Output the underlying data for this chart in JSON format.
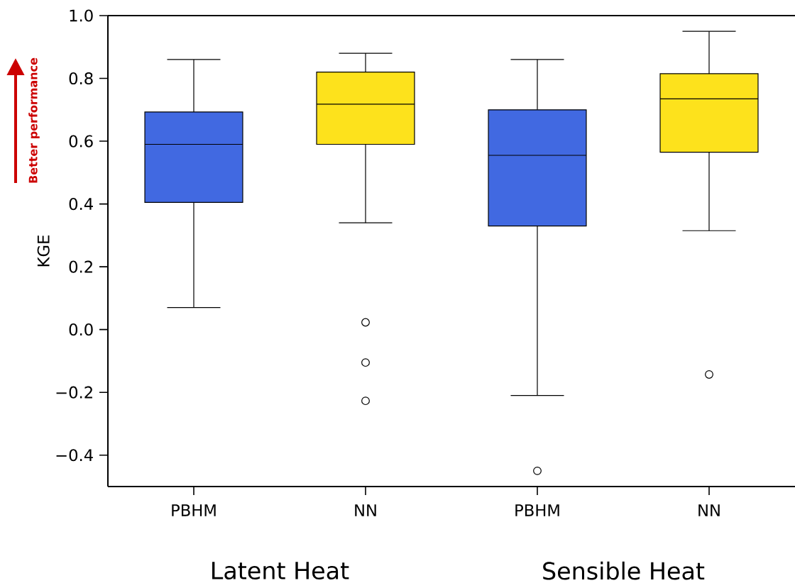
{
  "chart_data": {
    "type": "box",
    "categories": [
      "PBHM",
      "NN",
      "PBHM",
      "NN"
    ],
    "boxes": [
      {
        "low": 0.07,
        "q1": 0.405,
        "median": 0.59,
        "q3": 0.693,
        "high": 0.86
      },
      {
        "low": 0.34,
        "q1": 0.59,
        "median": 0.718,
        "q3": 0.82,
        "high": 0.88,
        "outliers": [
          0.023,
          -0.105,
          -0.227
        ]
      },
      {
        "low": -0.21,
        "q1": 0.33,
        "median": 0.555,
        "q3": 0.7,
        "high": 0.86,
        "outliers": [
          -0.45
        ]
      },
      {
        "low": 0.315,
        "q1": 0.565,
        "median": 0.735,
        "q3": 0.815,
        "high": 0.95,
        "outliers": [
          -0.143
        ]
      }
    ],
    "colors": [
      "#4169e1",
      "#fde21c",
      "#4169e1",
      "#fde21c"
    ],
    "ylabel": "KGE",
    "ylim": [
      -0.5,
      1.0
    ],
    "yticks": [
      {
        "value": -0.4,
        "label": "−0.4"
      },
      {
        "value": -0.2,
        "label": "−0.2"
      },
      {
        "value": 0.0,
        "label": "0.0"
      },
      {
        "value": 0.2,
        "label": "0.2"
      },
      {
        "value": 0.4,
        "label": "0.4"
      },
      {
        "value": 0.6,
        "label": "0.6"
      },
      {
        "value": 0.8,
        "label": "0.8"
      },
      {
        "value": 1.0,
        "label": "1.0"
      }
    ],
    "annotations": [
      "Better performance",
      "Latent Heat",
      "Sensible Heat"
    ]
  }
}
